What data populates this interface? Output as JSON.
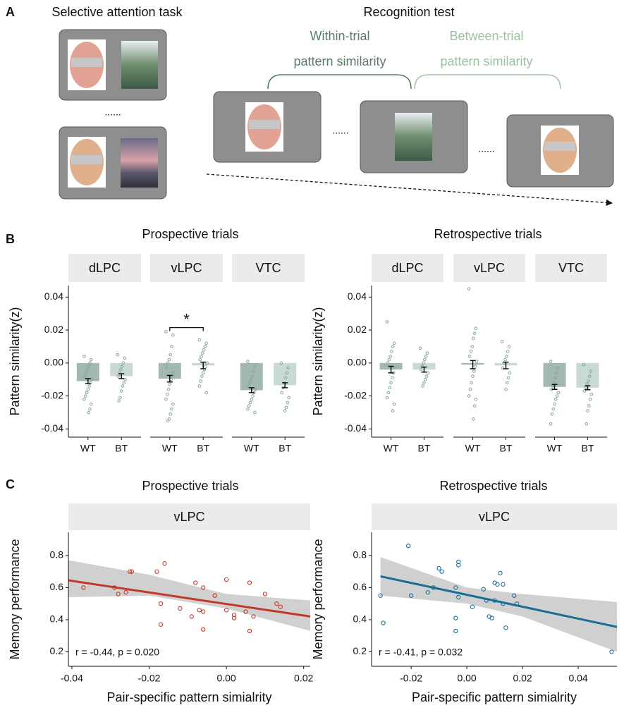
{
  "panel_labels": [
    "A",
    "B",
    "C"
  ],
  "panel_a": {
    "left_title": "Selective attention task",
    "right_title": "Recognition test",
    "within_trial": [
      "Within-trial",
      "pattern similarity"
    ],
    "between_trial": [
      "Between-trial",
      "pattern similarity"
    ],
    "ellipsis": "......"
  },
  "chart_data": [
    {
      "type": "bar",
      "title": "Prospective trials",
      "y_label": "Pattern similarity(z)",
      "ylim": [
        -0.045,
        0.047
      ],
      "yticks": [
        0.04,
        0.02,
        {
          "value": 0,
          "label": "0.00"
        },
        -0.02,
        -0.04
      ],
      "colors": [
        "#a3b8b1",
        "#c9dad6"
      ],
      "point_color": "#86a79c",
      "significance": {
        "facet": 1,
        "text": "*",
        "y": 0.0215
      },
      "facets": [
        {
          "name": "dLPC",
          "categories": [
            "WT",
            "BT"
          ],
          "values": [
            -0.011,
            -0.008
          ],
          "errors": [
            0.0015,
            0.0015
          ],
          "points": [
            [
              0.004,
              0.002,
              0.0,
              -0.002,
              -0.004,
              -0.006,
              -0.008,
              -0.01,
              -0.012,
              -0.014,
              -0.016,
              -0.018,
              -0.02,
              -0.022,
              -0.025,
              -0.028,
              -0.03
            ],
            [
              0.005,
              0.003,
              0.0,
              -0.002,
              -0.004,
              -0.006,
              -0.008,
              -0.01,
              -0.012,
              -0.014,
              -0.017,
              -0.021,
              -0.023
            ]
          ]
        },
        {
          "name": "vLPC",
          "categories": [
            "WT",
            "BT"
          ],
          "values": [
            -0.0095,
            -0.0015
          ],
          "errors": [
            0.002,
            0.002
          ],
          "points": [
            [
              0.019,
              0.017,
              0.01,
              0.005,
              0.002,
              0.0,
              -0.003,
              -0.006,
              -0.008,
              -0.01,
              -0.013,
              -0.016,
              -0.019,
              -0.022,
              -0.025,
              -0.028,
              -0.031,
              -0.034,
              -0.035
            ],
            [
              0.014,
              0.012,
              0.01,
              0.008,
              0.006,
              0.004,
              0.002,
              0.0,
              -0.002,
              -0.004,
              -0.006,
              -0.008,
              -0.011,
              -0.014,
              -0.018
            ]
          ]
        },
        {
          "name": "VTC",
          "categories": [
            "WT",
            "BT"
          ],
          "values": [
            -0.0165,
            -0.0135
          ],
          "errors": [
            0.0015,
            0.0015
          ],
          "points": [
            [
              0.001,
              -0.002,
              -0.005,
              -0.008,
              -0.01,
              -0.012,
              -0.014,
              -0.016,
              -0.018,
              -0.02,
              -0.022,
              -0.024,
              -0.026,
              -0.028,
              -0.03
            ],
            [
              0.0,
              -0.003,
              -0.006,
              -0.009,
              -0.012,
              -0.015,
              -0.018,
              -0.021,
              -0.024,
              -0.027,
              -0.029
            ]
          ]
        }
      ]
    },
    {
      "type": "bar",
      "title": "Retrospective trials",
      "y_label": "Pattern similarity(z)",
      "ylim": [
        -0.045,
        0.047
      ],
      "yticks": [
        0.04,
        0.02,
        {
          "value": 0,
          "label": "0.00"
        },
        -0.02,
        -0.04
      ],
      "colors": [
        "#a3b8b1",
        "#c9dad6"
      ],
      "point_color": "#86a79c",
      "facets": [
        {
          "name": "dLPC",
          "categories": [
            "WT",
            "BT"
          ],
          "values": [
            -0.004,
            -0.004
          ],
          "errors": [
            0.002,
            0.0015
          ],
          "points": [
            [
              0.025,
              0.012,
              0.01,
              0.007,
              0.004,
              0.002,
              0.0,
              -0.003,
              -0.006,
              -0.009,
              -0.012,
              -0.015,
              -0.018,
              -0.021,
              -0.025,
              -0.029
            ],
            [
              0.009,
              0.006,
              0.004,
              0.002,
              0.0,
              -0.002,
              -0.004,
              -0.006,
              -0.008,
              -0.01,
              -0.012,
              -0.014
            ]
          ]
        },
        {
          "name": "vLPC",
          "categories": [
            "WT",
            "BT"
          ],
          "values": [
            -0.001,
            -0.0015
          ],
          "errors": [
            0.0025,
            0.002
          ],
          "points": [
            [
              0.045,
              0.021,
              0.018,
              0.015,
              0.01,
              0.007,
              0.004,
              0.001,
              -0.002,
              -0.005,
              -0.008,
              -0.012,
              -0.016,
              -0.02,
              -0.022,
              -0.026,
              -0.034
            ],
            [
              0.013,
              0.01,
              0.007,
              0.004,
              0.002,
              0.0,
              -0.003,
              -0.006,
              -0.009,
              -0.012,
              -0.016
            ]
          ]
        },
        {
          "name": "VTC",
          "categories": [
            "WT",
            "BT"
          ],
          "values": [
            -0.0145,
            -0.015
          ],
          "errors": [
            0.0015,
            0.0012
          ],
          "points": [
            [
              0.001,
              -0.003,
              -0.006,
              -0.009,
              -0.012,
              -0.014,
              -0.016,
              -0.018,
              -0.02,
              -0.022,
              -0.025,
              -0.028,
              -0.031,
              -0.037
            ],
            [
              -0.001,
              -0.005,
              -0.008,
              -0.011,
              -0.013,
              -0.015,
              -0.017,
              -0.019,
              -0.022,
              -0.026,
              -0.029,
              -0.037
            ]
          ]
        }
      ]
    },
    {
      "type": "scatter",
      "title": "Prospective trials",
      "facet": "vLPC",
      "x_label": "Pair-specific pattern simialrity",
      "y_label": "Memory performance",
      "annotation": "r = -0.44, p = 0.020",
      "xlim": [
        -0.0409,
        0.0217
      ],
      "xticks": [
        -0.04,
        -0.02,
        {
          "value": 0,
          "label": "0.00"
        },
        0.02
      ],
      "ylim": [
        0.11,
        0.944
      ],
      "yticks": [
        0.8,
        0.6,
        0.4,
        0.2
      ],
      "color": "#c0392b",
      "x": [
        -0.037,
        -0.029,
        -0.028,
        -0.026,
        -0.025,
        -0.0245,
        -0.018,
        -0.016,
        -0.017,
        -0.017,
        -0.012,
        -0.009,
        -0.008,
        -0.007,
        -0.006,
        -0.006,
        -0.006,
        -0.003,
        0.0,
        0.0,
        0.002,
        0.002,
        0.005,
        0.006,
        0.006,
        0.007,
        0.01,
        0.013,
        0.014
      ],
      "y": [
        0.6,
        0.6,
        0.56,
        0.57,
        0.7,
        0.7,
        0.7,
        0.75,
        0.5,
        0.37,
        0.47,
        0.42,
        0.63,
        0.46,
        0.45,
        0.34,
        0.6,
        0.55,
        0.46,
        0.65,
        0.41,
        0.43,
        0.45,
        0.63,
        0.33,
        0.42,
        0.56,
        0.5,
        0.48
      ],
      "fit": {
        "x": [
          -0.0409,
          0.0217
        ],
        "y": [
          0.645,
          0.42
        ]
      },
      "band": {
        "x": [
          -0.0409,
          -0.02,
          0.0,
          0.0217
        ],
        "lower": [
          0.54,
          0.55,
          0.47,
          0.33
        ],
        "upper": [
          0.77,
          0.68,
          0.56,
          0.52
        ]
      }
    },
    {
      "type": "scatter",
      "title": "Retrospective trials",
      "facet": "vLPC",
      "x_label": "Pair-specific pattern simialrity",
      "y_label": "Memory performance",
      "annotation": "r = -0.41, p = 0.032",
      "xlim": [
        -0.0342,
        0.0539
      ],
      "xticks": [
        -0.02,
        {
          "value": 0,
          "label": "0.00"
        },
        0.02,
        0.04
      ],
      "ylim": [
        0.11,
        0.944
      ],
      "yticks": [
        0.8,
        0.6,
        0.4,
        0.2
      ],
      "color": "#1a6e96",
      "x": [
        -0.031,
        -0.03,
        -0.021,
        -0.02,
        -0.014,
        -0.012,
        -0.01,
        -0.009,
        -0.004,
        -0.003,
        -0.003,
        -0.003,
        -0.004,
        -0.004,
        0.002,
        0.006,
        0.007,
        0.008,
        0.009,
        0.01,
        0.01,
        0.011,
        0.012,
        0.013,
        0.013,
        0.014,
        0.017,
        0.018,
        0.052
      ],
      "y": [
        0.55,
        0.38,
        0.86,
        0.55,
        0.57,
        0.6,
        0.72,
        0.7,
        0.6,
        0.76,
        0.74,
        0.54,
        0.41,
        0.33,
        0.48,
        0.59,
        0.52,
        0.42,
        0.41,
        0.63,
        0.52,
        0.62,
        0.69,
        0.62,
        0.5,
        0.35,
        0.55,
        0.5,
        0.2
      ],
      "fit": {
        "x": [
          -0.031,
          0.0539
        ],
        "y": [
          0.67,
          0.355
        ]
      },
      "band": {
        "x": [
          -0.031,
          0.0,
          0.02,
          0.0539
        ],
        "lower": [
          0.55,
          0.5,
          0.42,
          0.2
        ],
        "upper": [
          0.79,
          0.6,
          0.56,
          0.51
        ]
      }
    }
  ]
}
